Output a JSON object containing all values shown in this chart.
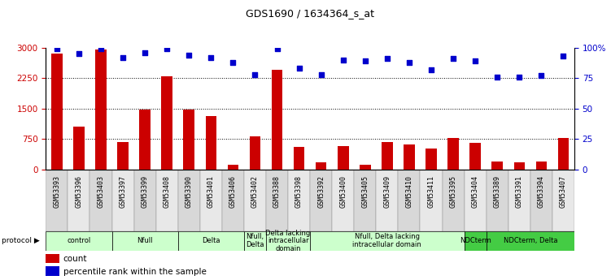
{
  "title": "GDS1690 / 1634364_s_at",
  "samples": [
    "GSM53393",
    "GSM53396",
    "GSM53403",
    "GSM53397",
    "GSM53399",
    "GSM53408",
    "GSM53390",
    "GSM53401",
    "GSM53406",
    "GSM53402",
    "GSM53388",
    "GSM53398",
    "GSM53392",
    "GSM53400",
    "GSM53405",
    "GSM53409",
    "GSM53410",
    "GSM53411",
    "GSM53395",
    "GSM53404",
    "GSM53389",
    "GSM53391",
    "GSM53394",
    "GSM53407"
  ],
  "counts": [
    2850,
    1050,
    2950,
    680,
    1480,
    2300,
    1470,
    1320,
    110,
    820,
    2450,
    550,
    175,
    580,
    110,
    680,
    620,
    520,
    770,
    660,
    200,
    175,
    200,
    770
  ],
  "percentiles": [
    99,
    95,
    99,
    92,
    96,
    99,
    94,
    92,
    88,
    78,
    99,
    83,
    78,
    90,
    89,
    91,
    88,
    82,
    91,
    89,
    76,
    76,
    77,
    93
  ],
  "groups": [
    {
      "label": "control",
      "start": 0,
      "end": 2,
      "color": "#ccffcc"
    },
    {
      "label": "Nfull",
      "start": 3,
      "end": 5,
      "color": "#ccffcc"
    },
    {
      "label": "Delta",
      "start": 6,
      "end": 8,
      "color": "#ccffcc"
    },
    {
      "label": "Nfull,\nDelta",
      "start": 9,
      "end": 9,
      "color": "#ccffcc"
    },
    {
      "label": "Delta lacking\nintracellular\ndomain",
      "start": 10,
      "end": 11,
      "color": "#ccffcc"
    },
    {
      "label": "Nfull, Delta lacking\nintracellular domain",
      "start": 12,
      "end": 18,
      "color": "#ccffcc"
    },
    {
      "label": "NDCterm",
      "start": 19,
      "end": 19,
      "color": "#44cc44"
    },
    {
      "label": "NDCterm, Delta",
      "start": 20,
      "end": 23,
      "color": "#44cc44"
    }
  ],
  "ylim_left": [
    0,
    3000
  ],
  "ylim_right": [
    0,
    100
  ],
  "yticks_left": [
    0,
    750,
    1500,
    2250,
    3000
  ],
  "yticks_right": [
    0,
    25,
    50,
    75,
    100
  ],
  "bar_color": "#cc0000",
  "dot_color": "#0000cc",
  "cell_bg_even": "#d8d8d8",
  "cell_bg_odd": "#e8e8e8",
  "plot_bg": "#ffffff",
  "legend_count_color": "#cc0000",
  "legend_pct_color": "#0000cc",
  "title_fontsize": 9,
  "tick_label_fontsize": 6,
  "group_label_fontsize": 6,
  "legend_fontsize": 7.5
}
